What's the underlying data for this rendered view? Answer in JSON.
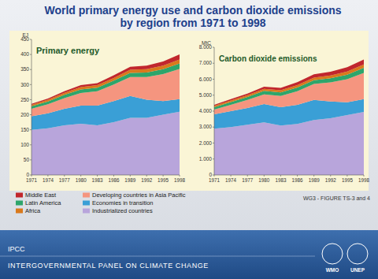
{
  "header": {
    "title": "World primary energy use and carbon dioxide emissions",
    "subtitle": "by region from 1971 to 1998"
  },
  "chart_data": [
    {
      "type": "area",
      "title": "Primary energy",
      "y_label": "EJ",
      "stacked": true,
      "grid": false,
      "x": [
        1971,
        1974,
        1977,
        1980,
        1983,
        1986,
        1989,
        1992,
        1995,
        1998
      ],
      "xlim": [
        1971,
        1998
      ],
      "xticks": [
        1971,
        1974,
        1977,
        1980,
        1983,
        1986,
        1989,
        1992,
        1995,
        1998
      ],
      "ylim": [
        0,
        450
      ],
      "yticks": [
        0,
        50,
        100,
        150,
        200,
        250,
        300,
        350,
        400,
        450
      ],
      "series": [
        {
          "name": "Industrialized countries",
          "color": "#b8a5db",
          "values": [
            150,
            155,
            165,
            170,
            165,
            175,
            190,
            190,
            200,
            210
          ]
        },
        {
          "name": "Economies in transition",
          "color": "#3a9fd6",
          "values": [
            45,
            50,
            55,
            60,
            65,
            70,
            72,
            60,
            45,
            42
          ]
        },
        {
          "name": "Developing countries in Asia Pacific",
          "color": "#f5957f",
          "values": [
            25,
            30,
            35,
            42,
            48,
            55,
            63,
            75,
            90,
            100
          ]
        },
        {
          "name": "Latin America",
          "color": "#2ea56b",
          "values": [
            8,
            9,
            11,
            12,
            12,
            13,
            14,
            15,
            16,
            18
          ]
        },
        {
          "name": "Africa",
          "color": "#d9791c",
          "values": [
            5,
            6,
            7,
            8,
            8,
            9,
            10,
            11,
            12,
            13
          ]
        },
        {
          "name": "Middle East",
          "color": "#c1272d",
          "values": [
            3,
            4,
            5,
            6,
            7,
            9,
            10,
            12,
            14,
            17
          ]
        }
      ]
    },
    {
      "type": "area",
      "title": "Carbon dioxide emissions",
      "y_label": "MtC",
      "stacked": true,
      "grid": false,
      "legend": "bottom",
      "x": [
        1971,
        1974,
        1977,
        1980,
        1983,
        1986,
        1989,
        1992,
        1995,
        1998
      ],
      "xlim": [
        1971,
        1998
      ],
      "xticks": [
        1971,
        1974,
        1977,
        1980,
        1983,
        1986,
        1989,
        1992,
        1995,
        1998
      ],
      "ylim": [
        0,
        8000
      ],
      "yticks": [
        0,
        {
          "value": 1000,
          "label": "1.000"
        },
        {
          "value": 2000,
          "label": "2.000"
        },
        {
          "value": 3000,
          "label": "3.000"
        },
        {
          "value": 4000,
          "label": "4.000"
        },
        {
          "value": 5000,
          "label": "5.000"
        },
        {
          "value": 6000,
          "label": "6.000"
        },
        {
          "value": 7000,
          "label": "7.000"
        },
        {
          "value": 8000,
          "label": "8.000"
        }
      ],
      "series": [
        {
          "name": "Industrialized countries",
          "color": "#b8a5db",
          "values": [
            2900,
            3000,
            3150,
            3300,
            3100,
            3200,
            3450,
            3550,
            3750,
            3950
          ]
        },
        {
          "name": "Economies in transition",
          "color": "#3a9fd6",
          "values": [
            900,
            1000,
            1050,
            1150,
            1150,
            1200,
            1250,
            1050,
            800,
            800
          ]
        },
        {
          "name": "Developing countries in Asia Pacific",
          "color": "#f5957f",
          "values": [
            300,
            400,
            500,
            600,
            700,
            850,
            1000,
            1200,
            1450,
            1650
          ]
        },
        {
          "name": "Latin America",
          "color": "#2ea56b",
          "values": [
            150,
            170,
            190,
            220,
            220,
            230,
            240,
            260,
            290,
            320
          ]
        },
        {
          "name": "Africa",
          "color": "#d9791c",
          "values": [
            80,
            100,
            110,
            130,
            140,
            150,
            160,
            170,
            190,
            210
          ]
        },
        {
          "name": "Middle East",
          "color": "#c1272d",
          "values": [
            60,
            80,
            100,
            130,
            150,
            180,
            210,
            240,
            270,
            300
          ]
        }
      ]
    }
  ],
  "footer": {
    "source": "WG3 - FIGURE TS-3 and 4",
    "org_short": "IPCC",
    "org_full": "INTERGOVERNMENTAL PANEL ON CLIMATE CHANGE",
    "logos": [
      "WMO",
      "UNEP"
    ]
  }
}
